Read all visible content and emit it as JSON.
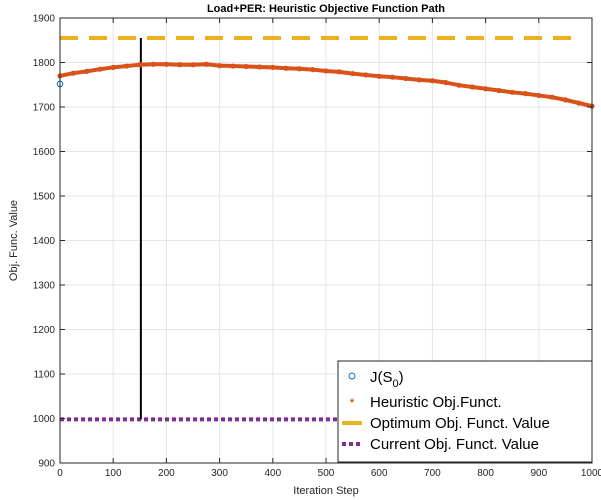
{
  "chart_data": {
    "type": "line",
    "title": "Load+PER: Heuristic Objective Function Path",
    "xlabel": "Iteration Step",
    "ylabel": "Obj. Func. Value",
    "xlim": [
      0,
      1000
    ],
    "ylim": [
      900,
      1900
    ],
    "x_ticks": [
      "0",
      "100",
      "200",
      "300",
      "400",
      "500",
      "600",
      "700",
      "800",
      "900",
      "1000"
    ],
    "y_ticks": [
      "900",
      "1000",
      "1100",
      "1200",
      "1300",
      "1400",
      "1500",
      "1600",
      "1700",
      "1800",
      "1900"
    ],
    "grid": true,
    "legend_position": "bottom-right",
    "colors": {
      "initial": "#0072BD",
      "heuristic": "#D95319",
      "optimum": "#EDB120",
      "current": "#7E2F8E",
      "marker_line": "#000000"
    },
    "series": [
      {
        "name": "J(S_0)",
        "legend_main": "J(S",
        "legend_sub": "0",
        "legend_end": ")",
        "style": "circle-marker",
        "points": [
          [
            0,
            1752
          ]
        ]
      },
      {
        "name": "Heuristic Obj.Funct.",
        "style": "star-markers",
        "x": [
          0,
          25,
          50,
          75,
          100,
          125,
          150,
          175,
          200,
          225,
          250,
          275,
          300,
          325,
          350,
          375,
          400,
          425,
          450,
          475,
          500,
          525,
          550,
          575,
          600,
          625,
          650,
          675,
          700,
          725,
          750,
          775,
          800,
          825,
          850,
          875,
          900,
          925,
          950,
          975,
          1000
        ],
        "y": [
          1770,
          1776,
          1780,
          1785,
          1789,
          1792,
          1795,
          1796,
          1796,
          1795,
          1795,
          1796,
          1793,
          1792,
          1791,
          1790,
          1789,
          1787,
          1786,
          1784,
          1781,
          1779,
          1775,
          1772,
          1769,
          1767,
          1764,
          1761,
          1759,
          1755,
          1749,
          1745,
          1741,
          1737,
          1733,
          1730,
          1726,
          1722,
          1716,
          1709,
          1702
        ]
      },
      {
        "name": "Optimum Obj. Funct. Value",
        "style": "dashed",
        "y": 1855
      },
      {
        "name": "Current Obj. Funct. Value",
        "style": "dotted",
        "y": 998
      }
    ],
    "vertical_marker": {
      "x": 152,
      "y_from": 998,
      "y_to": 1855
    }
  }
}
